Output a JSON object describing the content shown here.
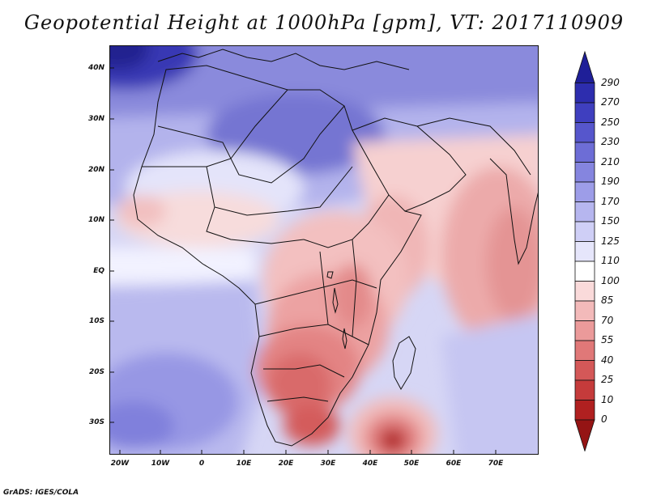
{
  "title": "Geopotential Height at 1000hPa [gpm], VT: 2017110909",
  "footer": "GrADS: IGES/COLA",
  "lat_labels": [
    "40N",
    "30N",
    "20N",
    "10N",
    "EQ",
    "10S",
    "20S",
    "30S"
  ],
  "lon_labels": [
    "20W",
    "10W",
    "0",
    "10E",
    "20E",
    "30E",
    "40E",
    "50E",
    "60E",
    "70E"
  ],
  "colorbar": {
    "labels": [
      "290",
      "270",
      "250",
      "230",
      "210",
      "190",
      "170",
      "150",
      "125",
      "110",
      "100",
      "85",
      "70",
      "55",
      "40",
      "25",
      "10",
      "0"
    ],
    "colors": [
      "#1f1f98",
      "#2d2dae",
      "#3f3fbf",
      "#5656cc",
      "#6d6dd6",
      "#8585df",
      "#9d9de8",
      "#b6b6ef",
      "#cfcff6",
      "#e6e6fb",
      "#ffffff",
      "#fadada",
      "#f3baba",
      "#eb9a9a",
      "#e07878",
      "#d45858",
      "#c53b3b",
      "#b02020",
      "#951414"
    ]
  }
}
